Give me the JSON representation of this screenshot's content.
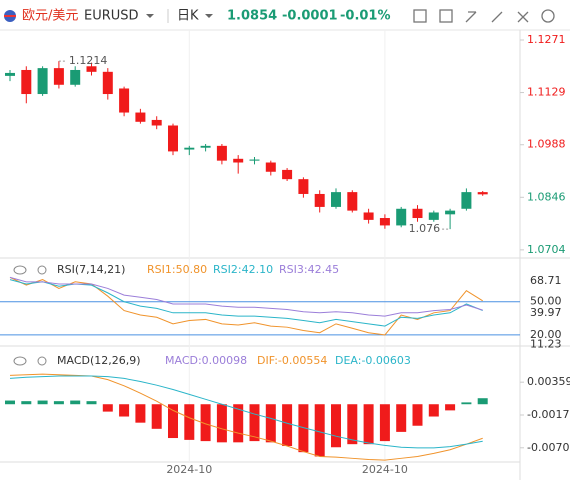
{
  "header": {
    "pair_cn": "欧元/美元",
    "pair": "EURUSD",
    "period": "日K",
    "price": "1.0854",
    "change": "-0.0001",
    "change_pct": "-0.01%"
  },
  "chart_data": [
    {
      "type": "candlestick",
      "up_color": "#1a9b74",
      "down_color": "#f01b1b",
      "categories": [
        null,
        null,
        null,
        null,
        null,
        null,
        null,
        null,
        null,
        null,
        null,
        "2024-10",
        null,
        null,
        null,
        null,
        null,
        null,
        null,
        null,
        null,
        null,
        null,
        "2024-10",
        null,
        null,
        null,
        null,
        null,
        null
      ],
      "open": [
        1.1174,
        1.119,
        1.1125,
        1.1195,
        1.115,
        1.12,
        1.1185,
        1.114,
        1.1075,
        1.1055,
        1.104,
        1.0975,
        1.098,
        1.0985,
        1.095,
        1.0945,
        1.094,
        1.092,
        1.0895,
        1.0855,
        1.082,
        1.086,
        1.0805,
        1.079,
        1.077,
        1.0815,
        1.0785,
        1.08,
        1.0815,
        1.086
      ],
      "high": [
        1.119,
        1.12,
        1.12,
        1.1214,
        1.12,
        1.121,
        1.1195,
        1.1145,
        1.1085,
        1.1065,
        1.1045,
        1.0985,
        1.099,
        1.099,
        1.096,
        1.0955,
        1.0945,
        1.0925,
        1.09,
        1.0865,
        1.087,
        1.0865,
        1.0815,
        1.08,
        1.082,
        1.0825,
        1.081,
        1.0815,
        1.087,
        1.0863
      ],
      "low": [
        1.116,
        1.11,
        1.112,
        1.114,
        1.1145,
        1.1175,
        1.111,
        1.1065,
        1.1045,
        1.103,
        1.096,
        1.096,
        1.097,
        1.0935,
        1.091,
        1.0935,
        1.0905,
        1.089,
        1.0845,
        1.0805,
        1.0815,
        1.0805,
        1.0775,
        1.0761,
        1.0765,
        1.078,
        1.078,
        1.076,
        1.081,
        1.085
      ],
      "close": [
        1.1182,
        1.1125,
        1.1195,
        1.115,
        1.119,
        1.1185,
        1.1125,
        1.1075,
        1.105,
        1.104,
        1.097,
        1.098,
        1.0985,
        1.0945,
        1.094,
        1.0948,
        1.0915,
        1.0895,
        1.0855,
        1.082,
        1.086,
        1.081,
        1.0785,
        1.077,
        1.0815,
        1.079,
        1.0805,
        1.081,
        1.086,
        1.0854
      ],
      "ylim": [
        1.0682,
        1.1298
      ],
      "yticks": [
        {
          "value": 1.0704,
          "label": "1.0704"
        },
        {
          "value": 1.0846,
          "label": "1.0846"
        },
        {
          "value": 1.0988,
          "label": "1.0988"
        },
        {
          "value": 1.1129,
          "label": "1.1129"
        },
        {
          "value": 1.1271,
          "label": "1.1271"
        }
      ]
    },
    {
      "type": "line",
      "title": "RSI(7,14,21)",
      "ylim": [
        10,
        85
      ],
      "yticks": [
        {
          "value": 20,
          "label": "20.00"
        },
        {
          "value": 50,
          "label": "50.00"
        }
      ],
      "line_color": "#4a90e2",
      "tags": [
        {
          "value": 68.71,
          "label": "68.71"
        },
        {
          "value": 39.97,
          "label": "39.97"
        },
        {
          "value": 11.23,
          "label": "11.23"
        }
      ],
      "series": [
        {
          "name": "RSI1:50.80",
          "color": "#f0932b",
          "values": [
            72,
            65,
            70,
            62,
            68,
            66,
            55,
            42,
            38,
            36,
            30,
            33,
            34,
            30,
            29,
            31,
            28,
            27,
            24,
            22,
            30,
            26,
            22,
            20,
            38,
            34,
            40,
            42,
            60,
            50.8
          ]
        },
        {
          "name": "RSI2:42.10",
          "color": "#2bb5c9",
          "values": [
            70,
            66,
            68,
            64,
            66,
            65,
            58,
            50,
            46,
            44,
            40,
            40,
            40,
            38,
            37,
            37,
            36,
            35,
            33,
            31,
            34,
            32,
            30,
            28,
            36,
            35,
            38,
            40,
            48,
            42.1
          ]
        },
        {
          "name": "RSI3:42.45",
          "color": "#9b7ed9",
          "values": [
            72,
            68,
            68,
            66,
            66,
            66,
            62,
            56,
            54,
            52,
            48,
            48,
            48,
            46,
            45,
            45,
            44,
            43,
            41,
            40,
            41,
            40,
            38,
            37,
            40,
            40,
            42,
            43,
            47,
            42.45
          ]
        }
      ]
    },
    {
      "type": "bar",
      "title": "MACD(12,26,9)",
      "ylim": [
        -0.0094,
        0.0085
      ],
      "yticks": [
        {
          "value": -0.00709,
          "label": "-0.00709"
        },
        {
          "value": -0.00175,
          "label": "-0.00175"
        },
        {
          "value": 0.00359,
          "label": "0.00359"
        }
      ],
      "series": [
        {
          "name": "MACD:0.00098",
          "color": "#9b7ed9",
          "up_color": "#1a9b74",
          "down_color": "#f01b1b",
          "values": [
            0.0006,
            0.0005,
            0.0006,
            0.0005,
            0.0006,
            0.0005,
            -0.0012,
            -0.002,
            -0.003,
            -0.004,
            -0.0055,
            -0.0058,
            -0.006,
            -0.0062,
            -0.0062,
            -0.006,
            -0.0062,
            -0.0068,
            -0.0078,
            -0.0085,
            -0.007,
            -0.0065,
            -0.0065,
            -0.006,
            -0.0045,
            -0.0035,
            -0.002,
            -0.001,
            0.0003,
            0.00098
          ]
        },
        {
          "name": "DIF:-0.00554",
          "color": "#f0932b",
          "kind": "line",
          "values": [
            0.0047,
            0.0048,
            0.0049,
            0.0048,
            0.0047,
            0.0046,
            0.004,
            0.003,
            0.0018,
            0.0005,
            -0.001,
            -0.0022,
            -0.0032,
            -0.004,
            -0.0047,
            -0.0053,
            -0.006,
            -0.0068,
            -0.0077,
            -0.0085,
            -0.0086,
            -0.0088,
            -0.009,
            -0.0091,
            -0.0088,
            -0.0085,
            -0.008,
            -0.0074,
            -0.0065,
            -0.00554
          ]
        },
        {
          "name": "DEA:-0.00603",
          "color": "#2bb5c9",
          "kind": "line",
          "values": [
            0.0042,
            0.0044,
            0.0045,
            0.0046,
            0.0046,
            0.0046,
            0.0045,
            0.0042,
            0.0037,
            0.0031,
            0.0024,
            0.0016,
            0.0008,
            0.0,
            -0.0008,
            -0.0016,
            -0.0023,
            -0.0031,
            -0.0038,
            -0.0045,
            -0.0052,
            -0.0058,
            -0.0063,
            -0.0067,
            -0.007,
            -0.0071,
            -0.0071,
            -0.0069,
            -0.0065,
            -0.00603
          ]
        }
      ]
    }
  ]
}
